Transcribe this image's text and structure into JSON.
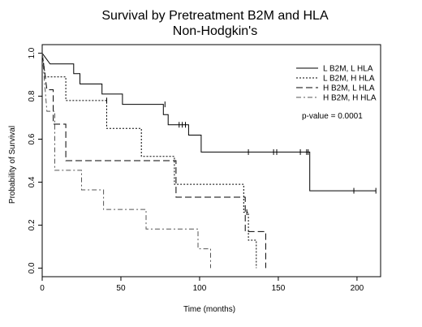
{
  "chart_data": {
    "type": "line",
    "title": "Survival by Pretreatment B2M and HLA",
    "subtitle": "Non-Hodgkin's",
    "xlabel": "Time (months)",
    "ylabel": "Probability of Survival",
    "xlim": [
      0,
      215
    ],
    "ylim": [
      -0.04,
      1.04
    ],
    "xticks": [
      0,
      50,
      100,
      150,
      200
    ],
    "yticks": [
      0.0,
      0.2,
      0.4,
      0.6,
      0.8,
      1.0
    ],
    "xtick_labels": [
      "0",
      "50",
      "100",
      "150",
      "200"
    ],
    "ytick_labels": [
      "0.0",
      "0.2",
      "0.4",
      "0.6",
      "0.8",
      "1.0"
    ],
    "grid": false,
    "legend_position": "top-right",
    "annotations": [
      {
        "text": "p-value = 0.0001"
      }
    ],
    "series": [
      {
        "name": "L B2M, L HLA",
        "style": "solid",
        "color": "#000000",
        "steps": [
          [
            0,
            1.0
          ],
          [
            5,
            0.95
          ],
          [
            20,
            0.95
          ],
          [
            20,
            0.905
          ],
          [
            24,
            0.905
          ],
          [
            24,
            0.857
          ],
          [
            38,
            0.857
          ],
          [
            38,
            0.81
          ],
          [
            51,
            0.81
          ],
          [
            51,
            0.762
          ],
          [
            77,
            0.762
          ],
          [
            77,
            0.714
          ],
          [
            80,
            0.714
          ],
          [
            80,
            0.667
          ],
          [
            93,
            0.667
          ],
          [
            93,
            0.619
          ],
          [
            101,
            0.619
          ],
          [
            101,
            0.54
          ],
          [
            170,
            0.54
          ],
          [
            170,
            0.36
          ],
          [
            212,
            0.36
          ]
        ],
        "censors": [
          [
            78,
            0.762
          ],
          [
            87,
            0.667
          ],
          [
            89,
            0.667
          ],
          [
            91,
            0.667
          ],
          [
            131,
            0.54
          ],
          [
            147,
            0.54
          ],
          [
            149,
            0.54
          ],
          [
            164,
            0.54
          ],
          [
            168,
            0.54
          ],
          [
            169,
            0.54
          ],
          [
            198,
            0.36
          ],
          [
            212,
            0.36
          ]
        ]
      },
      {
        "name": "L B2M, H HLA",
        "style": "dotted",
        "color": "#000000",
        "steps": [
          [
            0,
            1.0
          ],
          [
            2,
            0.89
          ],
          [
            15,
            0.89
          ],
          [
            15,
            0.78
          ],
          [
            41,
            0.78
          ],
          [
            41,
            0.65
          ],
          [
            63,
            0.65
          ],
          [
            63,
            0.52
          ],
          [
            84,
            0.52
          ],
          [
            84,
            0.39
          ],
          [
            128,
            0.39
          ],
          [
            128,
            0.26
          ],
          [
            131,
            0.26
          ],
          [
            131,
            0.13
          ],
          [
            136,
            0.13
          ],
          [
            136,
            0.0
          ]
        ],
        "censors": [
          [
            41,
            0.78
          ],
          [
            130,
            0.26
          ]
        ]
      },
      {
        "name": "H B2M, L HLA",
        "style": "dashed",
        "color": "#000000",
        "steps": [
          [
            0,
            1.0
          ],
          [
            3,
            0.83
          ],
          [
            7,
            0.83
          ],
          [
            7,
            0.67
          ],
          [
            15,
            0.67
          ],
          [
            15,
            0.5
          ],
          [
            85,
            0.5
          ],
          [
            85,
            0.33
          ],
          [
            129,
            0.33
          ],
          [
            129,
            0.17
          ],
          [
            142,
            0.17
          ],
          [
            142,
            0.0
          ]
        ],
        "censors": []
      },
      {
        "name": "H B2M, H HLA",
        "style": "dashdot",
        "color": "#555555",
        "steps": [
          [
            0,
            1.0
          ],
          [
            3,
            0.73
          ],
          [
            8,
            0.73
          ],
          [
            8,
            0.455
          ],
          [
            25,
            0.455
          ],
          [
            25,
            0.364
          ],
          [
            39,
            0.364
          ],
          [
            39,
            0.273
          ],
          [
            66,
            0.273
          ],
          [
            66,
            0.182
          ],
          [
            99,
            0.182
          ],
          [
            99,
            0.09
          ],
          [
            107,
            0.09
          ],
          [
            107,
            0.0
          ]
        ],
        "censors": []
      }
    ]
  }
}
